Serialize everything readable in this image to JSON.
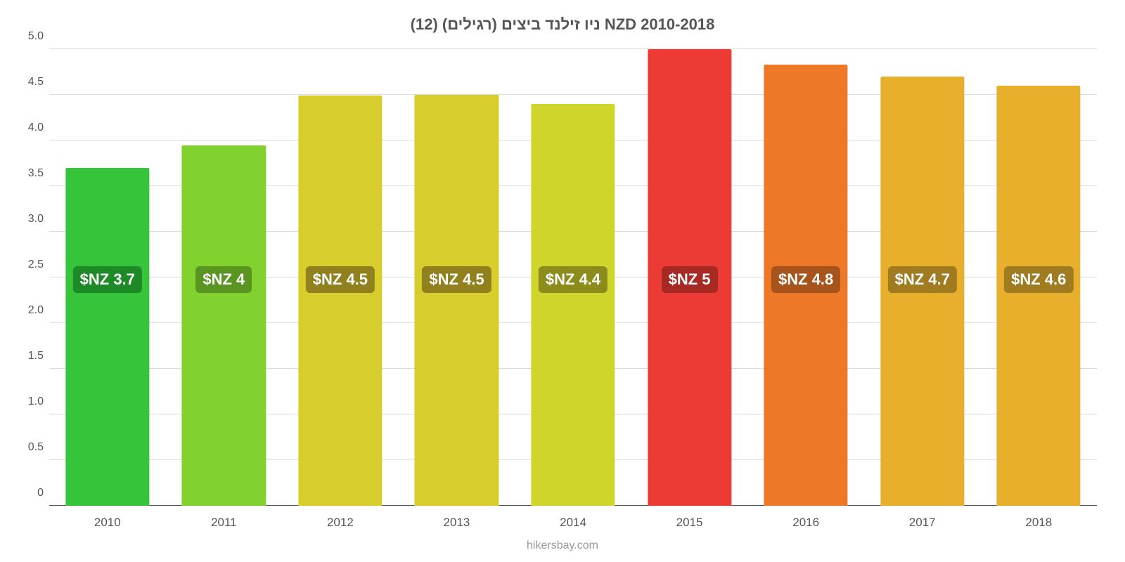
{
  "chart": {
    "type": "bar",
    "title": "ניו זילנד ביצים (רגילים) (12) NZD 2010-2018",
    "title_fontsize": 22,
    "title_color": "#555555",
    "attribution": "hikersbay.com",
    "attribution_fontsize": 16,
    "attribution_color": "#999999",
    "background_color": "#ffffff",
    "grid_color": "#dcdcdc",
    "baseline_color": "#555555",
    "axis_label_color": "#555555",
    "axis_label_fontsize": 16,
    "x_tick_fontsize": 17,
    "ylim": [
      0,
      5.0
    ],
    "ytick_step": 0.5,
    "y_ticks": [
      "0",
      "0.5",
      "1.0",
      "1.5",
      "2.0",
      "2.5",
      "3.0",
      "3.5",
      "4.0",
      "4.5",
      "5.0"
    ],
    "bar_width_pct": 72,
    "badge_y_value": 2.5,
    "badge_fontsize": 22,
    "badge_text_color": "#ffffff",
    "categories": [
      "2010",
      "2011",
      "2012",
      "2013",
      "2014",
      "2015",
      "2016",
      "2017",
      "2018"
    ],
    "values": [
      3.7,
      3.95,
      4.49,
      4.5,
      4.4,
      5.0,
      4.83,
      4.7,
      4.6
    ],
    "labels": [
      "$NZ 3.7",
      "$NZ 4",
      "$NZ 4.5",
      "$NZ 4.5",
      "$NZ 4.4",
      "$NZ 5",
      "$NZ 4.8",
      "$NZ 4.7",
      "$NZ 4.6"
    ],
    "bar_colors": [
      "#35c43a",
      "#82d22f",
      "#d7ce2e",
      "#d7ce2e",
      "#cfd52b",
      "#ec3b34",
      "#ed7827",
      "#e8af2d",
      "#e8af2d"
    ],
    "badge_colors": [
      "#1e8a27",
      "#5a9521",
      "#91801e",
      "#91801e",
      "#8c8c1d",
      "#a62924",
      "#a6541c",
      "#a17b1f",
      "#a17b1f"
    ]
  }
}
